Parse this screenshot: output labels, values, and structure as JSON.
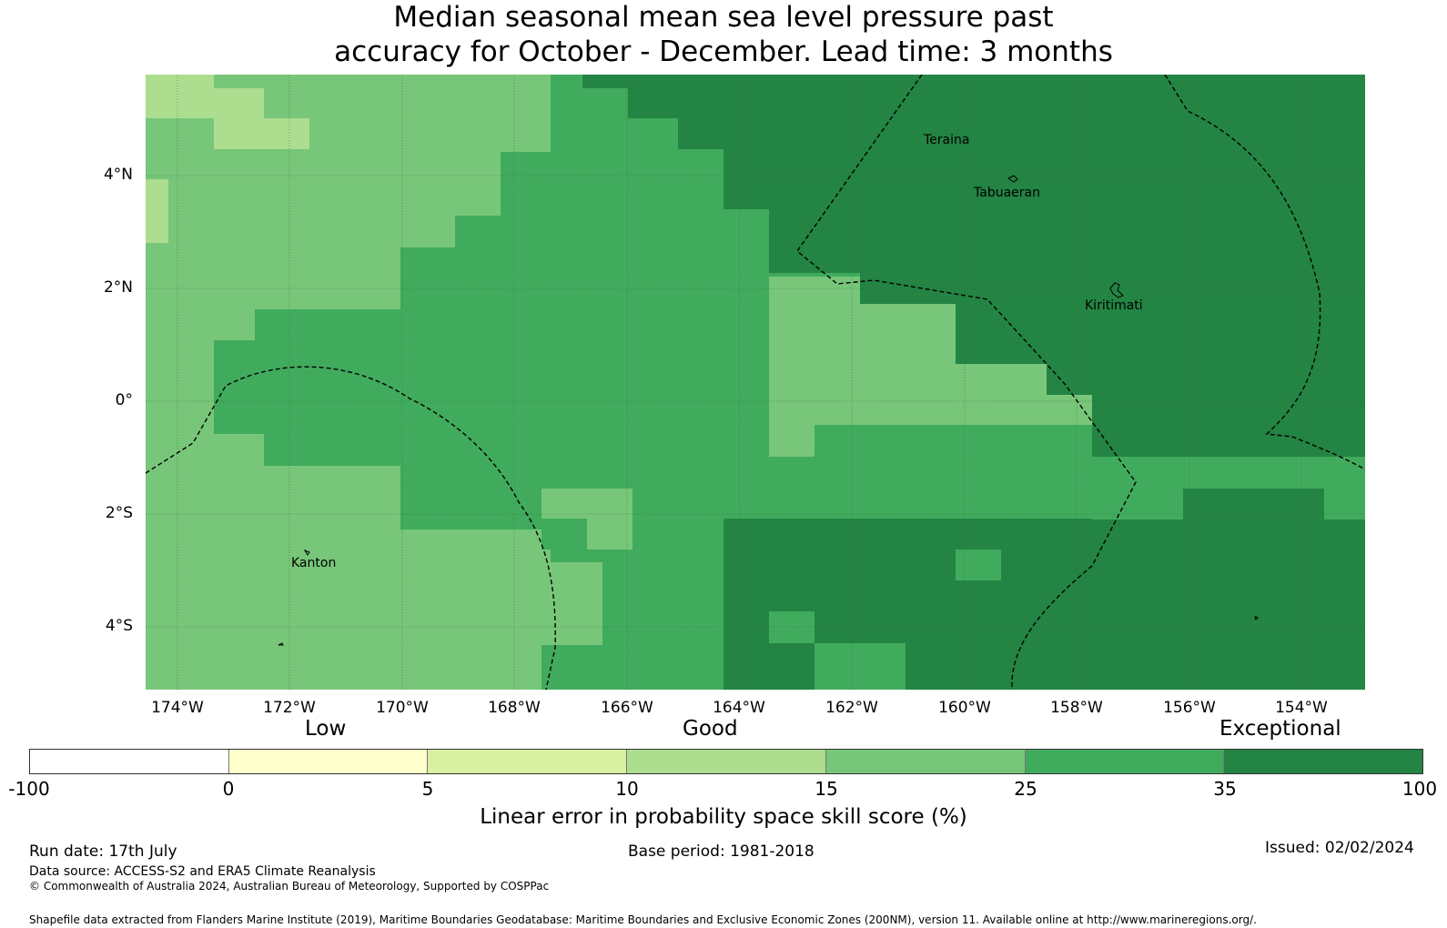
{
  "title_line1": "Median seasonal mean sea level pressure past",
  "title_line2": "accuracy for October - December. Lead time: 3 months",
  "lat_labels": [
    "4°N",
    "2°N",
    "0°",
    "2°S",
    "4°S"
  ],
  "lon_labels": [
    "174°W",
    "172°W",
    "170°W",
    "168°W",
    "166°W",
    "164°W",
    "162°W",
    "160°W",
    "158°W",
    "156°W",
    "154°W"
  ],
  "places": [
    "Teraina",
    "Tabuaeran",
    "Kiritimati",
    "Kanton"
  ],
  "colorbar": {
    "categories": [
      "Low",
      "Good",
      "Exceptional"
    ],
    "ticks": [
      "-100",
      "0",
      "5",
      "10",
      "15",
      "25",
      "35",
      "100"
    ],
    "colors": [
      "#ffffff",
      "#ffffcc",
      "#d9f0a3",
      "#addd8e",
      "#78c679",
      "#41ab5d",
      "#238443"
    ],
    "label": "Linear error in probability space skill score (%)"
  },
  "footer": {
    "run_date": "Run date: 17th July",
    "base_period": "Base period: 1981-2018",
    "issued": "Issued: 02/02/2024",
    "data_source": "Data source: ACCESS-S2 and ERA5 Climate Reanalysis",
    "copyright": "© Commonwealth of Australia 2024, Australian Bureau of Meteorology, Supported by COSPPac",
    "shapefile": "Shapefile data extracted from Flanders Marine Institute (2019), Maritime Boundaries Geodatabase: Maritime Boundaries and Exclusive Economic Zones (200NM), version 11. Available online at http://www.marineregions.org/."
  }
}
